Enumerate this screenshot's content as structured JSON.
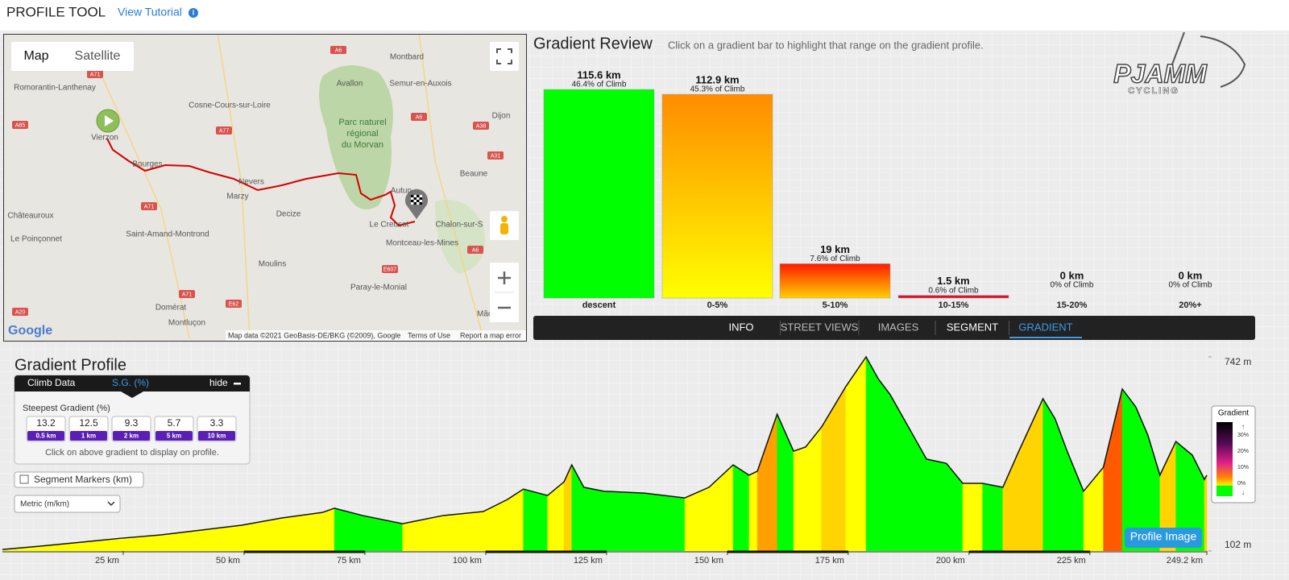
{
  "header": {
    "title": "PROFILE TOOL",
    "link": "View Tutorial"
  },
  "map": {
    "tabs": [
      "Map",
      "Satellite"
    ],
    "labels": [
      "Montbard",
      "Avallon",
      "Semur-en-Auxois",
      "Romorantin-Lanthenay",
      "Cosne-Cours-sur-Loire",
      "Dijon",
      "Parc naturel",
      "régional",
      "du Morvan",
      "Vierzon",
      "Bourges",
      "Beaune",
      "Nevers",
      "Autun",
      "Marzy",
      "Le Creusot",
      "Chalon-sur-S",
      "Châteauroux",
      "Decize",
      "Saint-Amand-Montrond",
      "Le Poinçonnet",
      "Montceau-les-Mines",
      "Moulins",
      "Paray-le-Monial",
      "Domérat",
      "Mâcon",
      "Montluçon"
    ],
    "roads": [
      "A6",
      "A71",
      "A85",
      "A77",
      "A6",
      "A38",
      "A31",
      "A71",
      "A71",
      "A20",
      "E62",
      "E607",
      "A6"
    ],
    "logo": "Google",
    "attribution": [
      "Map data ©2021 GeoBasis-DE/BKG (©2009), Google",
      "Terms of Use",
      "Report a map error"
    ]
  },
  "gradient_review": {
    "title": "Gradient Review",
    "subtitle": "Click on a gradient bar to highlight that range on the gradient profile.",
    "logo": [
      "PJAMM",
      "CYCLING"
    ],
    "bars": [
      {
        "category": "descent",
        "km": 115.6,
        "km_label": "115.6 km",
        "share_label": "46.4% of Climb"
      },
      {
        "category": "0-5%",
        "km": 112.9,
        "km_label": "112.9 km",
        "share_label": "45.3% of Climb"
      },
      {
        "category": "5-10%",
        "km": 19,
        "km_label": "19 km",
        "share_label": "7.6% of Climb"
      },
      {
        "category": "10-15%",
        "km": 1.5,
        "km_label": "1.5 km",
        "share_label": "0.6% of Climb"
      },
      {
        "category": "15-20%",
        "km": 0,
        "km_label": "0 km",
        "share_label": "0% of Climb"
      },
      {
        "category": "20%+",
        "km": 0,
        "km_label": "0 km",
        "share_label": "0% of Climb"
      }
    ],
    "tabs": [
      "INFO",
      "STREET VIEWS",
      "IMAGES",
      "SEGMENT",
      "GRADIENT"
    ]
  },
  "gradient_profile": {
    "title": "Gradient Profile",
    "climb_data": {
      "tabs": [
        "Climb Data",
        "S.G. (%)"
      ],
      "hide": "hide",
      "heading": "Steepest Gradient (%)",
      "values": [
        13.2,
        12.5,
        9.3,
        5.7,
        3.3
      ],
      "windows": [
        "0.5 km",
        "1 km",
        "2 km",
        "5 km",
        "10 km"
      ],
      "hint": "Click on above gradient to display on profile."
    },
    "segment_markers": "Segment Markers (km)",
    "units": "Metric (m/km)",
    "chart": {
      "distance": [
        0,
        7.8,
        16.2,
        24.5,
        32.8,
        41.2,
        49.5,
        57.8,
        66.2,
        68.7,
        74.5,
        82.8,
        91.2,
        99.5,
        104.5,
        107.8,
        112.8,
        116.2,
        117.8,
        120.3,
        124.5,
        132.8,
        141.2,
        146.2,
        151.2,
        154.5,
        156.2,
        160.3,
        163.7,
        166.2,
        169.5,
        174.5,
        178.7,
        181.2,
        183.7,
        187,
        191.2,
        195.3,
        198.7,
        202.8,
        207,
        210.3,
        215.3,
        217.8,
        220.3,
        223.7,
        227.8,
        231.7,
        234.5,
        237,
        239.5,
        242.8,
        246.2,
        248.7,
        249.2
      ],
      "elevation": [
        107,
        118,
        131,
        144,
        155,
        171,
        187,
        211,
        229,
        243,
        219,
        192,
        219,
        232,
        272,
        306,
        285,
        330,
        386,
        312,
        299,
        293,
        277,
        312,
        386,
        352,
        365,
        553,
        431,
        445,
        511,
        644,
        742,
        670,
        617,
        524,
        405,
        391,
        325,
        325,
        312,
        431,
        604,
        538,
        431,
        299,
        378,
        636,
        577,
        484,
        352,
        463,
        418,
        338,
        352
      ],
      "xlim": [
        0,
        249.2
      ],
      "xticks": [
        {
          "value": 25,
          "label": "25 km"
        },
        {
          "value": 50,
          "label": "50 km"
        },
        {
          "value": 75,
          "label": "75 km"
        },
        {
          "value": 100,
          "label": "100 km"
        },
        {
          "value": 125,
          "label": "125 km"
        },
        {
          "value": 150,
          "label": "150 km"
        },
        {
          "value": 175,
          "label": "175 km"
        },
        {
          "value": 200,
          "label": "200 km"
        },
        {
          "value": 225,
          "label": "225 km"
        },
        {
          "value": 249.2,
          "label": "249.2 km"
        }
      ],
      "ylim": [
        102,
        742
      ],
      "yticks": [
        {
          "value": 742,
          "label": "742 m"
        },
        {
          "value": 102,
          "label": "102 m"
        }
      ]
    },
    "legend": {
      "title": "Gradient",
      "ticks": [
        "30%",
        "20%",
        "10%",
        "0%"
      ]
    },
    "button": "Profile Image"
  }
}
